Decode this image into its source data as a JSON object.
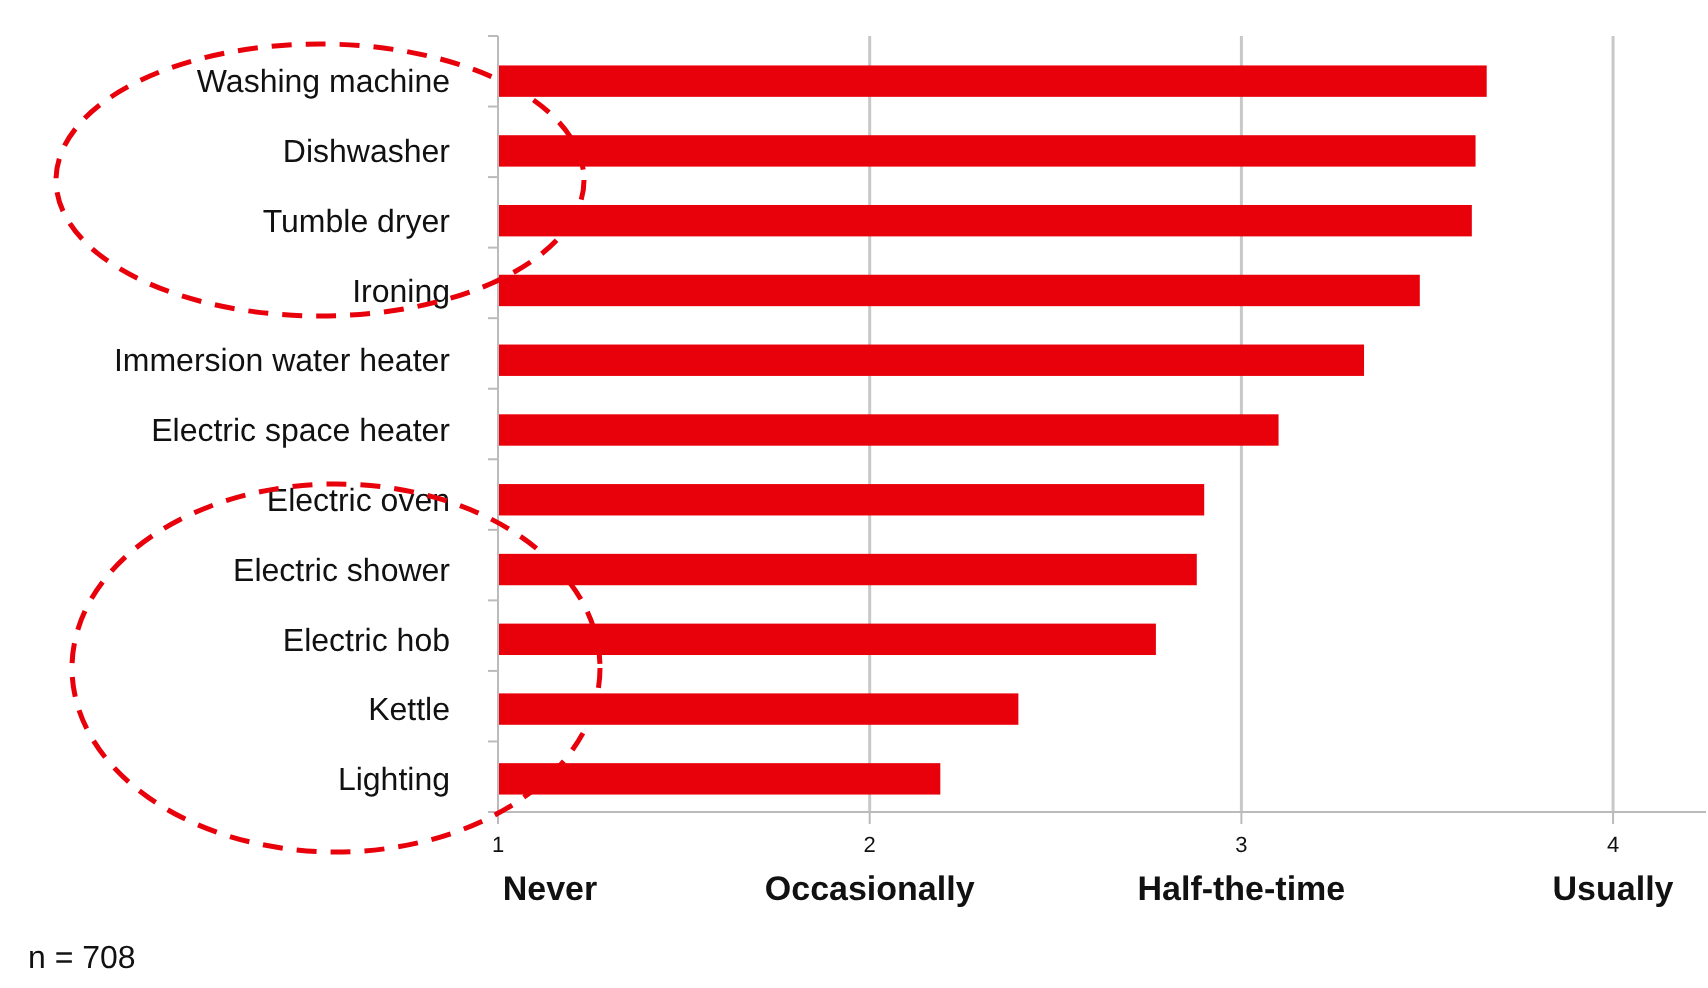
{
  "chart_data": {
    "type": "bar",
    "orientation": "horizontal",
    "categories": [
      "Washing machine",
      "Dishwasher",
      "Tumble dryer",
      "Ironing",
      "Immersion water heater",
      "Electric space heater",
      "Electric oven",
      "Electric shower",
      "Electric hob",
      "Kettle",
      "Lighting"
    ],
    "values": [
      3.66,
      3.63,
      3.62,
      3.48,
      3.33,
      3.1,
      2.9,
      2.88,
      2.77,
      2.4,
      2.19
    ],
    "color": "#e8000b",
    "xlim": [
      1,
      4.25
    ],
    "xticks": [
      {
        "value": 1,
        "label": "1\nNever"
      },
      {
        "value": 2,
        "label": "2\nOccasionally"
      },
      {
        "value": 3,
        "label": "3\nHalf-the-time"
      },
      {
        "value": 4,
        "label": "4\nUsually"
      }
    ],
    "grid": "x",
    "annotations": [
      "n = 708"
    ]
  }
}
